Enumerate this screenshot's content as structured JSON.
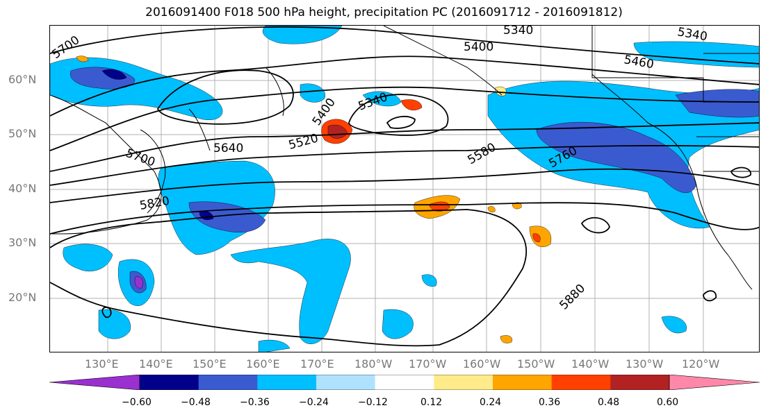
{
  "title": "2016091400 F018 500 hPa height, precipitation PC (2016091712 - 2016091812)",
  "lat_labels": [
    "60°N",
    "50°N",
    "40°N",
    "30°N",
    "20°N"
  ],
  "lon_labels": [
    "130°E",
    "140°E",
    "150°E",
    "160°E",
    "170°E",
    "180°W",
    "170°W",
    "160°W",
    "150°W",
    "140°W",
    "130°W",
    "120°W"
  ],
  "contour_labels": [
    "5700",
    "5340",
    "5400",
    "5340",
    "5460",
    "5400",
    "5340",
    "5520",
    "5640",
    "5700",
    "5580",
    "5760",
    "5820",
    "5880"
  ],
  "colorbar": {
    "ticks": [
      "−0.60",
      "−0.48",
      "−0.36",
      "−0.24",
      "−0.12",
      "0.12",
      "0.24",
      "0.36",
      "0.48",
      "0.60"
    ],
    "colors": [
      "#9b30d0",
      "#00008b",
      "#3a5bd0",
      "#00bfff",
      "#b0e2ff",
      "#ffffff",
      "#ffeb8a",
      "#ffa500",
      "#ff4000",
      "#b22222",
      "#ff88aa"
    ]
  }
}
